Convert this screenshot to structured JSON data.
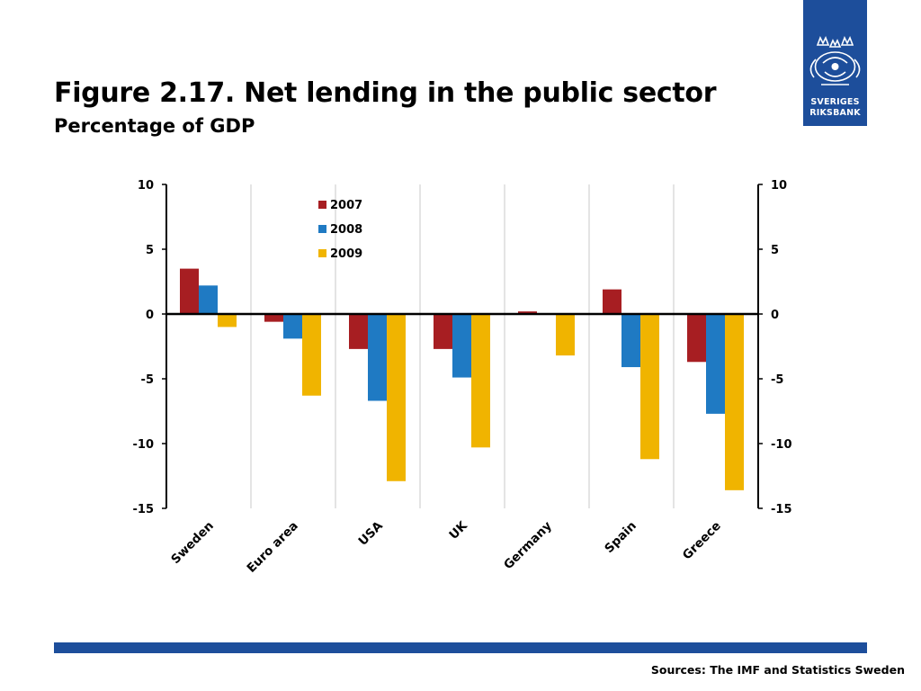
{
  "header": {
    "title": "Figure 2.17. Net lending in the public sector",
    "subtitle": "Percentage of GDP"
  },
  "logo": {
    "line1": "SVERIGES",
    "line2": "RIKSBANK",
    "color": "#1d4e9b"
  },
  "footer": {
    "source": "Sources: The IMF and Statistics Sweden",
    "bar_color": "#1d4e9b"
  },
  "chart_data": {
    "type": "bar",
    "categories": [
      "Sweden",
      "Euro area",
      "USA",
      "UK",
      "Germany",
      "Spain",
      "Greece"
    ],
    "series": [
      {
        "name": "2007",
        "color": "#a71e22",
        "values": [
          3.5,
          -0.6,
          -2.7,
          -2.7,
          0.2,
          1.9,
          -3.7
        ]
      },
      {
        "name": "2008",
        "color": "#1f7ac3",
        "values": [
          2.2,
          -1.9,
          -6.7,
          -4.9,
          0.0,
          -4.1,
          -7.7
        ]
      },
      {
        "name": "2009",
        "color": "#f0b400",
        "values": [
          -1.0,
          -6.3,
          -12.9,
          -10.3,
          -3.2,
          -11.2,
          -13.6
        ]
      }
    ],
    "ylim": [
      -15,
      10
    ],
    "yticks": [
      "10",
      "5",
      "0",
      "-5",
      "-10",
      "-15"
    ],
    "secondary_axis": true,
    "grid": "vertical",
    "legend_position": "top-center"
  }
}
